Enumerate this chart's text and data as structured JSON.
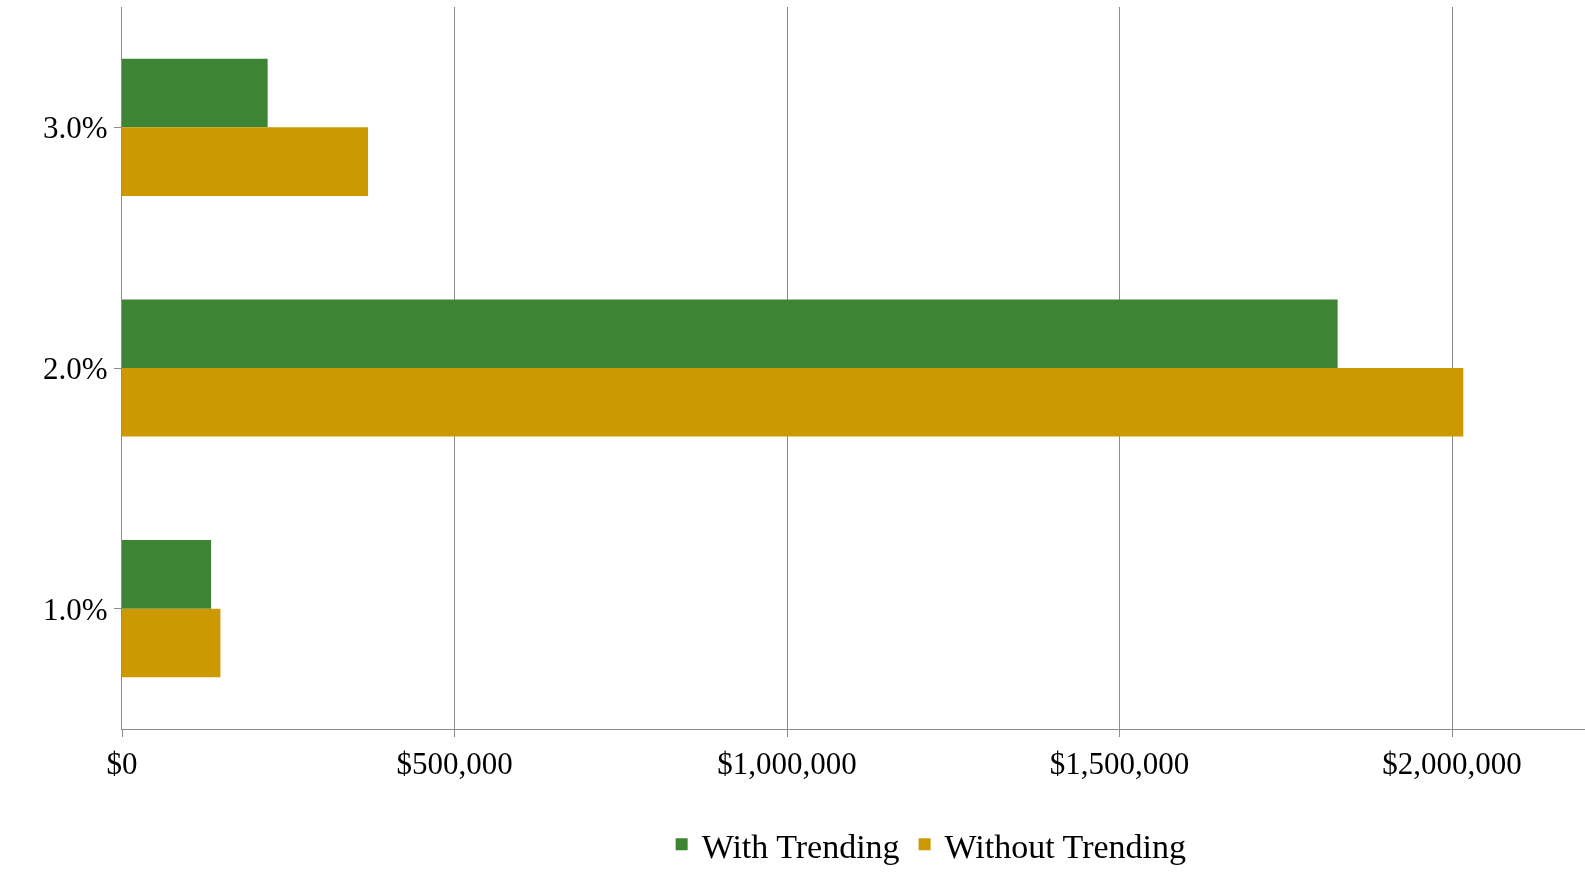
{
  "chart_data": {
    "type": "bar",
    "orientation": "horizontal",
    "categories": [
      "3.0%",
      "2.0%",
      "1.0%"
    ],
    "series": [
      {
        "name": "With Trending",
        "color": "#3d8434",
        "values": [
          219000,
          1828000,
          134000
        ]
      },
      {
        "name": "Without Trending",
        "color": "#cc9900",
        "values": [
          370000,
          2017000,
          148000
        ]
      }
    ],
    "xlim": [
      0,
      2200000
    ],
    "xticks": [
      {
        "value": 0,
        "label": "$0"
      },
      {
        "value": 500000,
        "label": "$500,000"
      },
      {
        "value": 1000000,
        "label": "$1,000,000"
      },
      {
        "value": 1500000,
        "label": "$1,500,000"
      },
      {
        "value": 2000000,
        "label": "$2,000,000"
      }
    ],
    "grid": "x",
    "legend": "bottom"
  }
}
